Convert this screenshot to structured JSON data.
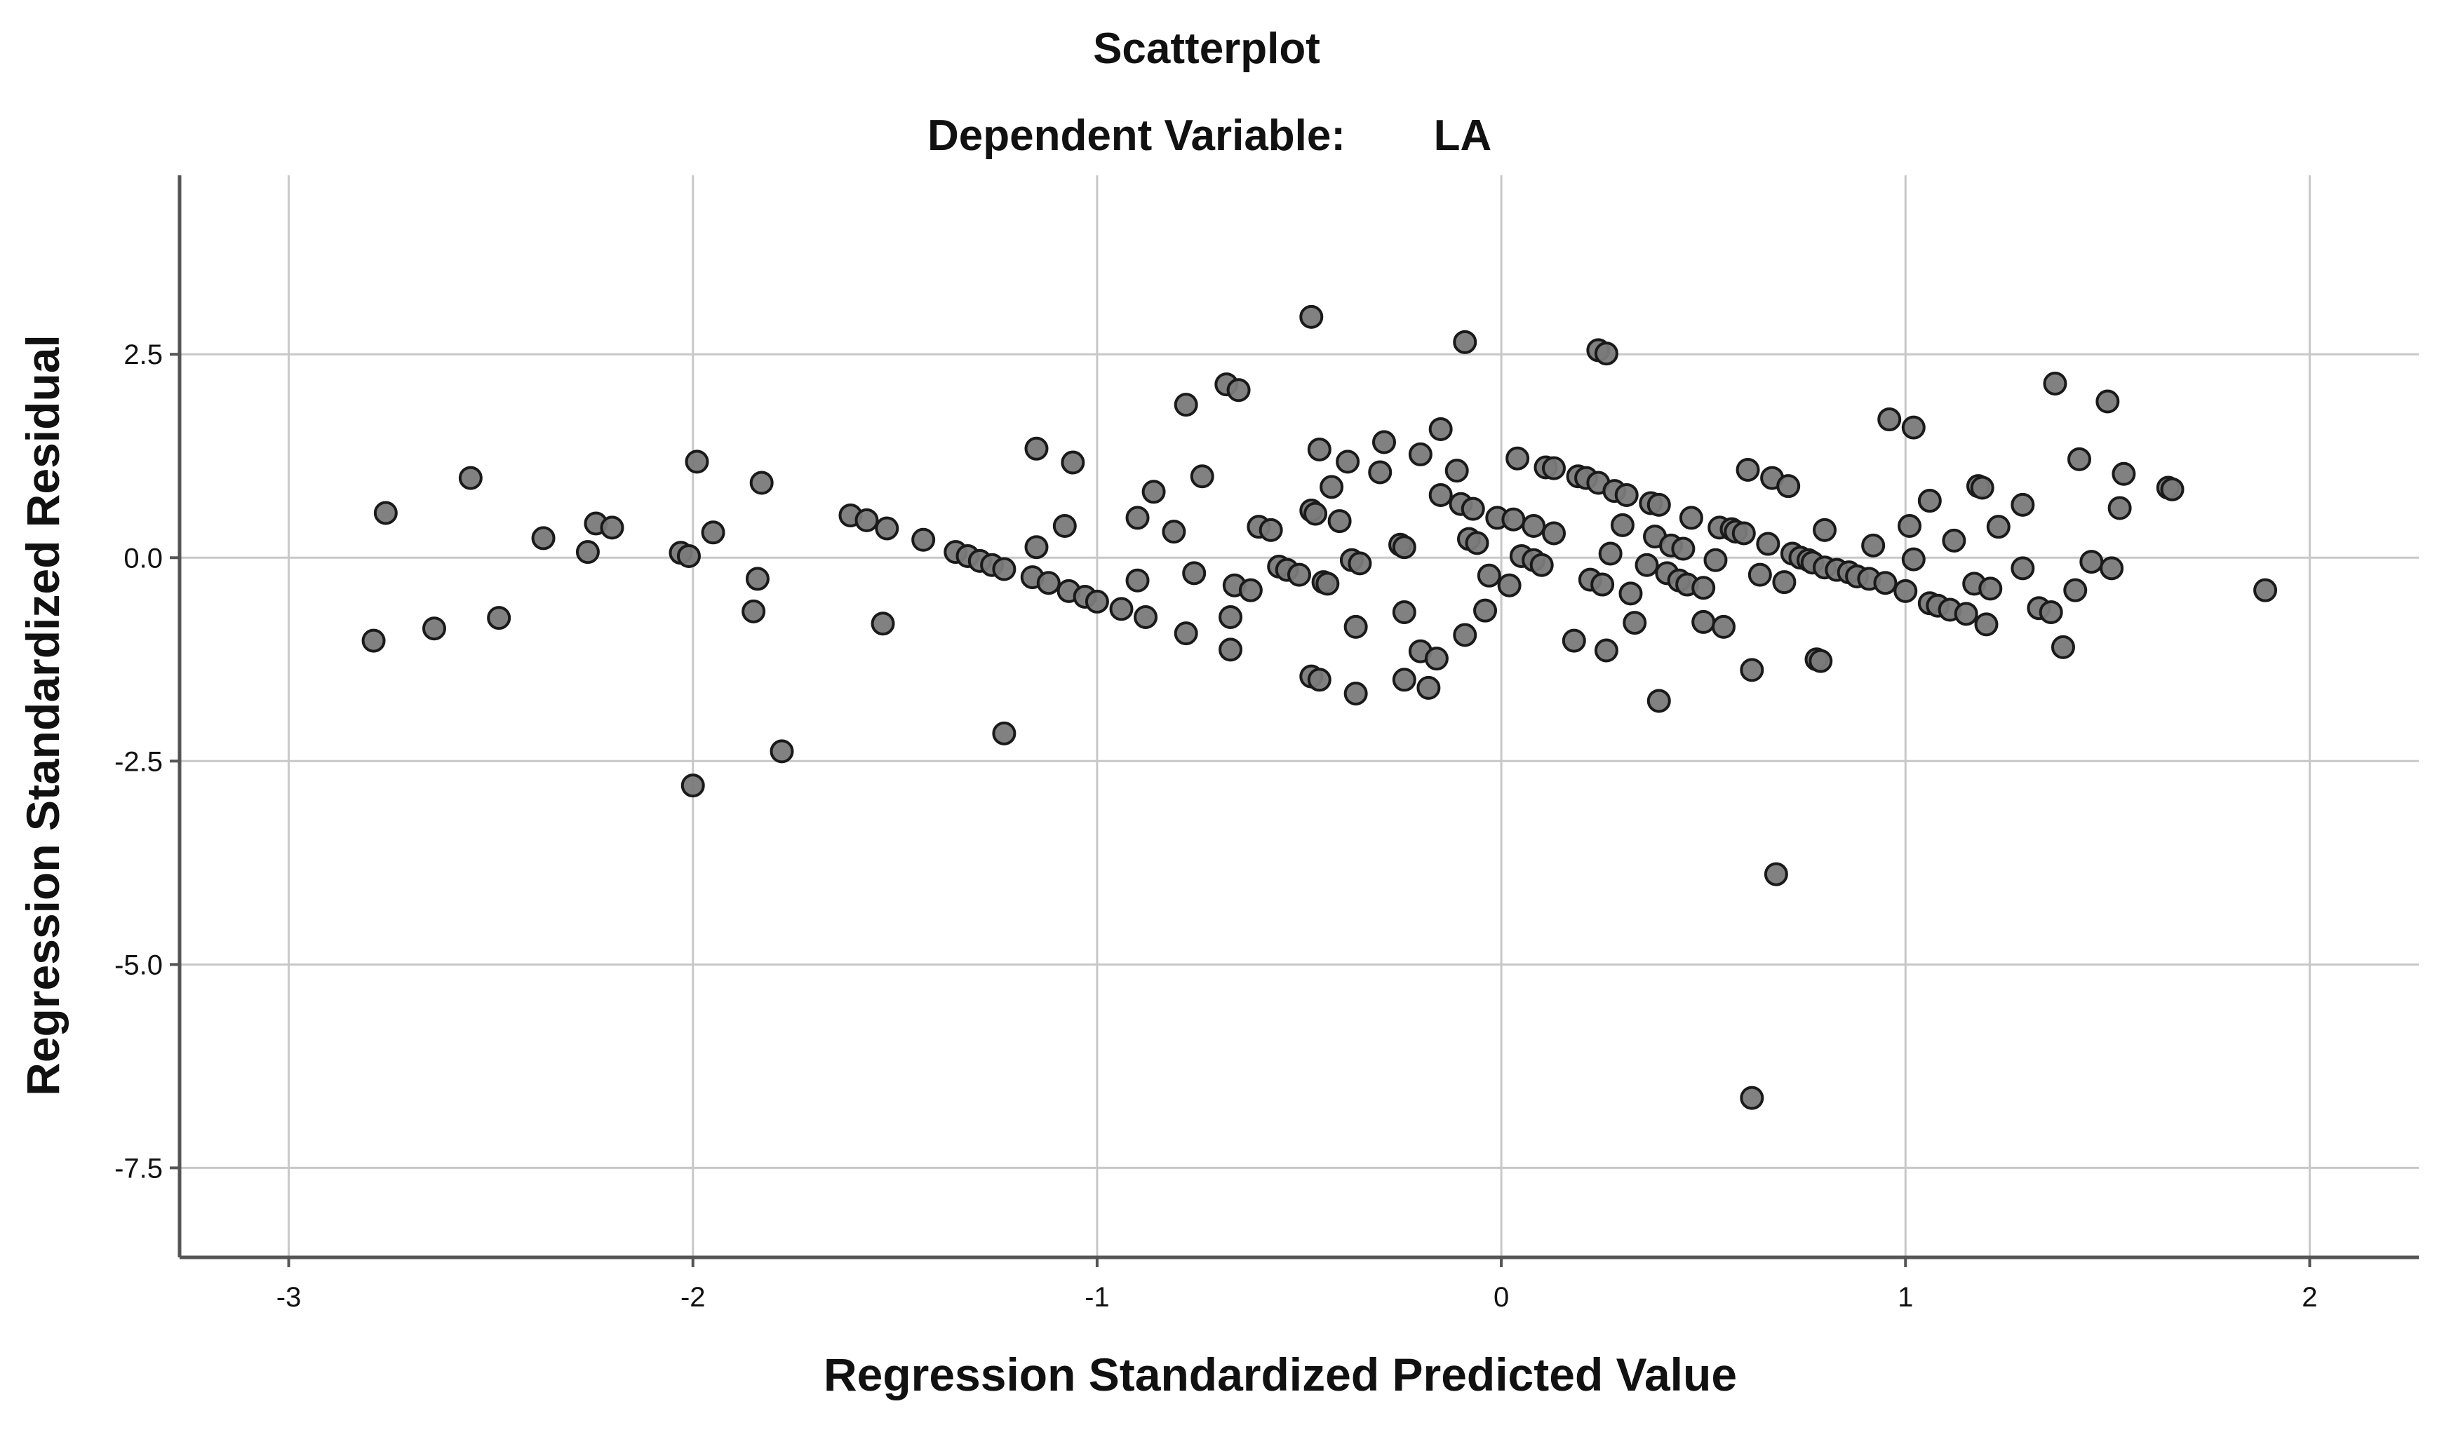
{
  "chart_data": {
    "type": "scatter",
    "title": "Scatterplot",
    "subtitle_label": "Dependent Variable:",
    "subtitle_value": "LA",
    "xlabel": "Regression Standardized Predicted Value",
    "ylabel": "Regression Standardized Residual",
    "xlim": [
      -3.27,
      2.27
    ],
    "ylim": [
      -8.6,
      4.7
    ],
    "xticks": [
      -3,
      -2,
      -1,
      0,
      1,
      2
    ],
    "xtick_labels": [
      "-3",
      "-2",
      "-1",
      "0",
      "1",
      "2"
    ],
    "yticks": [
      2.5,
      0.0,
      -2.5,
      -5.0,
      -7.5
    ],
    "ytick_labels": [
      "2.5",
      "0.0",
      "-2.5",
      "-5.0",
      "-7.5"
    ],
    "grid": true,
    "colors": {
      "point_fill": "#7a7a7a",
      "point_stroke": "#1a1a1a",
      "grid": "#c8c8c8",
      "axis": "#555555"
    },
    "points": [
      [
        -2.79,
        -1.02
      ],
      [
        -2.76,
        0.55
      ],
      [
        -2.64,
        -0.87
      ],
      [
        -2.55,
        0.98
      ],
      [
        -2.48,
        -0.74
      ],
      [
        -2.37,
        0.24
      ],
      [
        -2.26,
        0.07
      ],
      [
        -2.24,
        0.42
      ],
      [
        -2.2,
        0.37
      ],
      [
        -2.03,
        0.06
      ],
      [
        -2.01,
        0.02
      ],
      [
        -2.0,
        -2.8
      ],
      [
        -1.99,
        1.18
      ],
      [
        -1.95,
        0.31
      ],
      [
        -1.85,
        -0.66
      ],
      [
        -1.84,
        -0.26
      ],
      [
        -1.83,
        0.92
      ],
      [
        -1.78,
        -2.38
      ],
      [
        -1.61,
        0.52
      ],
      [
        -1.57,
        0.46
      ],
      [
        -1.53,
        -0.81
      ],
      [
        -1.52,
        0.36
      ],
      [
        -1.43,
        0.22
      ],
      [
        -1.35,
        0.07
      ],
      [
        -1.32,
        0.02
      ],
      [
        -1.29,
        -0.04
      ],
      [
        -1.26,
        -0.09
      ],
      [
        -1.23,
        -0.14
      ],
      [
        -1.23,
        -2.16
      ],
      [
        -1.16,
        -0.24
      ],
      [
        -1.15,
        1.34
      ],
      [
        -1.15,
        0.13
      ],
      [
        -1.12,
        -0.31
      ],
      [
        -1.08,
        0.39
      ],
      [
        -1.07,
        -0.41
      ],
      [
        -1.06,
        1.17
      ],
      [
        -1.03,
        -0.48
      ],
      [
        -1.0,
        -0.54
      ],
      [
        -0.94,
        -0.63
      ],
      [
        -0.9,
        0.49
      ],
      [
        -0.9,
        -0.28
      ],
      [
        -0.88,
        -0.73
      ],
      [
        -0.86,
        0.81
      ],
      [
        -0.81,
        0.32
      ],
      [
        -0.78,
        1.88
      ],
      [
        -0.78,
        -0.93
      ],
      [
        -0.76,
        -0.19
      ],
      [
        -0.74,
        1.0
      ],
      [
        -0.68,
        2.13
      ],
      [
        -0.67,
        -0.73
      ],
      [
        -0.67,
        -1.13
      ],
      [
        -0.66,
        -0.34
      ],
      [
        -0.65,
        2.06
      ],
      [
        -0.62,
        -0.4
      ],
      [
        -0.6,
        0.38
      ],
      [
        -0.57,
        0.34
      ],
      [
        -0.55,
        -0.11
      ],
      [
        -0.53,
        -0.15
      ],
      [
        -0.5,
        -0.21
      ],
      [
        -0.47,
        0.58
      ],
      [
        -0.47,
        2.96
      ],
      [
        -0.47,
        -1.46
      ],
      [
        -0.46,
        0.54
      ],
      [
        -0.45,
        -1.5
      ],
      [
        -0.45,
        1.33
      ],
      [
        -0.44,
        -0.3
      ],
      [
        -0.43,
        -0.32
      ],
      [
        -0.42,
        0.87
      ],
      [
        -0.4,
        0.45
      ],
      [
        -0.38,
        1.18
      ],
      [
        -0.37,
        -0.03
      ],
      [
        -0.36,
        -1.67
      ],
      [
        -0.36,
        -0.85
      ],
      [
        -0.35,
        -0.07
      ],
      [
        -0.3,
        1.05
      ],
      [
        -0.29,
        1.42
      ],
      [
        -0.25,
        0.16
      ],
      [
        -0.24,
        0.13
      ],
      [
        -0.24,
        -0.67
      ],
      [
        -0.24,
        -1.5
      ],
      [
        -0.2,
        1.27
      ],
      [
        -0.2,
        -1.15
      ],
      [
        -0.18,
        -1.6
      ],
      [
        -0.16,
        -1.24
      ],
      [
        -0.15,
        0.77
      ],
      [
        -0.15,
        1.58
      ],
      [
        -0.11,
        1.07
      ],
      [
        -0.1,
        0.66
      ],
      [
        -0.09,
        2.65
      ],
      [
        -0.09,
        -0.95
      ],
      [
        -0.08,
        0.23
      ],
      [
        -0.07,
        0.6
      ],
      [
        -0.06,
        0.18
      ],
      [
        -0.04,
        -0.65
      ],
      [
        -0.03,
        -0.22
      ],
      [
        -0.01,
        0.49
      ],
      [
        0.02,
        -0.34
      ],
      [
        0.03,
        0.47
      ],
      [
        0.04,
        1.22
      ],
      [
        0.05,
        0.02
      ],
      [
        0.08,
        0.39
      ],
      [
        0.08,
        -0.03
      ],
      [
        0.1,
        -0.09
      ],
      [
        0.11,
        1.11
      ],
      [
        0.13,
        1.1
      ],
      [
        0.13,
        0.3
      ],
      [
        0.18,
        -1.02
      ],
      [
        0.19,
        1.0
      ],
      [
        0.21,
        0.98
      ],
      [
        0.22,
        -0.27
      ],
      [
        0.24,
        2.55
      ],
      [
        0.24,
        0.92
      ],
      [
        0.25,
        -0.33
      ],
      [
        0.26,
        2.51
      ],
      [
        0.26,
        -1.14
      ],
      [
        0.27,
        0.05
      ],
      [
        0.28,
        0.82
      ],
      [
        0.3,
        0.4
      ],
      [
        0.31,
        0.77
      ],
      [
        0.32,
        -0.44
      ],
      [
        0.33,
        -0.8
      ],
      [
        0.36,
        -0.09
      ],
      [
        0.37,
        0.67
      ],
      [
        0.38,
        0.26
      ],
      [
        0.39,
        -1.76
      ],
      [
        0.39,
        0.65
      ],
      [
        0.41,
        -0.19
      ],
      [
        0.42,
        0.15
      ],
      [
        0.44,
        -0.28
      ],
      [
        0.45,
        0.11
      ],
      [
        0.46,
        -0.33
      ],
      [
        0.47,
        0.49
      ],
      [
        0.5,
        -0.37
      ],
      [
        0.5,
        -0.79
      ],
      [
        0.53,
        -0.03
      ],
      [
        0.54,
        0.37
      ],
      [
        0.55,
        -0.85
      ],
      [
        0.57,
        0.35
      ],
      [
        0.58,
        0.32
      ],
      [
        0.6,
        0.3
      ],
      [
        0.61,
        1.08
      ],
      [
        0.62,
        -1.38
      ],
      [
        0.62,
        -6.64
      ],
      [
        0.64,
        -0.21
      ],
      [
        0.66,
        0.17
      ],
      [
        0.67,
        0.98
      ],
      [
        0.68,
        -3.89
      ],
      [
        0.7,
        -0.3
      ],
      [
        0.71,
        0.88
      ],
      [
        0.72,
        0.05
      ],
      [
        0.74,
        0.0
      ],
      [
        0.76,
        -0.03
      ],
      [
        0.77,
        -0.06
      ],
      [
        0.78,
        -1.25
      ],
      [
        0.79,
        -1.27
      ],
      [
        0.8,
        -0.12
      ],
      [
        0.8,
        0.34
      ],
      [
        0.83,
        -0.15
      ],
      [
        0.86,
        -0.18
      ],
      [
        0.88,
        -0.23
      ],
      [
        0.91,
        -0.26
      ],
      [
        0.92,
        0.15
      ],
      [
        0.95,
        -0.31
      ],
      [
        0.96,
        1.7
      ],
      [
        1.0,
        -0.41
      ],
      [
        1.01,
        0.39
      ],
      [
        1.02,
        1.6
      ],
      [
        1.02,
        -0.02
      ],
      [
        1.06,
        0.7
      ],
      [
        1.06,
        -0.56
      ],
      [
        1.08,
        -0.59
      ],
      [
        1.11,
        -0.64
      ],
      [
        1.12,
        0.21
      ],
      [
        1.15,
        -0.69
      ],
      [
        1.17,
        -0.32
      ],
      [
        1.18,
        0.88
      ],
      [
        1.19,
        0.86
      ],
      [
        1.2,
        -0.82
      ],
      [
        1.21,
        -0.38
      ],
      [
        1.23,
        0.38
      ],
      [
        1.29,
        0.65
      ],
      [
        1.29,
        -0.13
      ],
      [
        1.33,
        -0.62
      ],
      [
        1.36,
        -0.67
      ],
      [
        1.37,
        2.14
      ],
      [
        1.39,
        -1.1
      ],
      [
        1.42,
        -0.4
      ],
      [
        1.43,
        1.21
      ],
      [
        1.46,
        -0.05
      ],
      [
        1.5,
        1.92
      ],
      [
        1.51,
        -0.13
      ],
      [
        1.53,
        0.61
      ],
      [
        1.54,
        1.03
      ],
      [
        1.65,
        0.86
      ],
      [
        1.66,
        0.84
      ],
      [
        1.89,
        -0.4
      ]
    ]
  }
}
